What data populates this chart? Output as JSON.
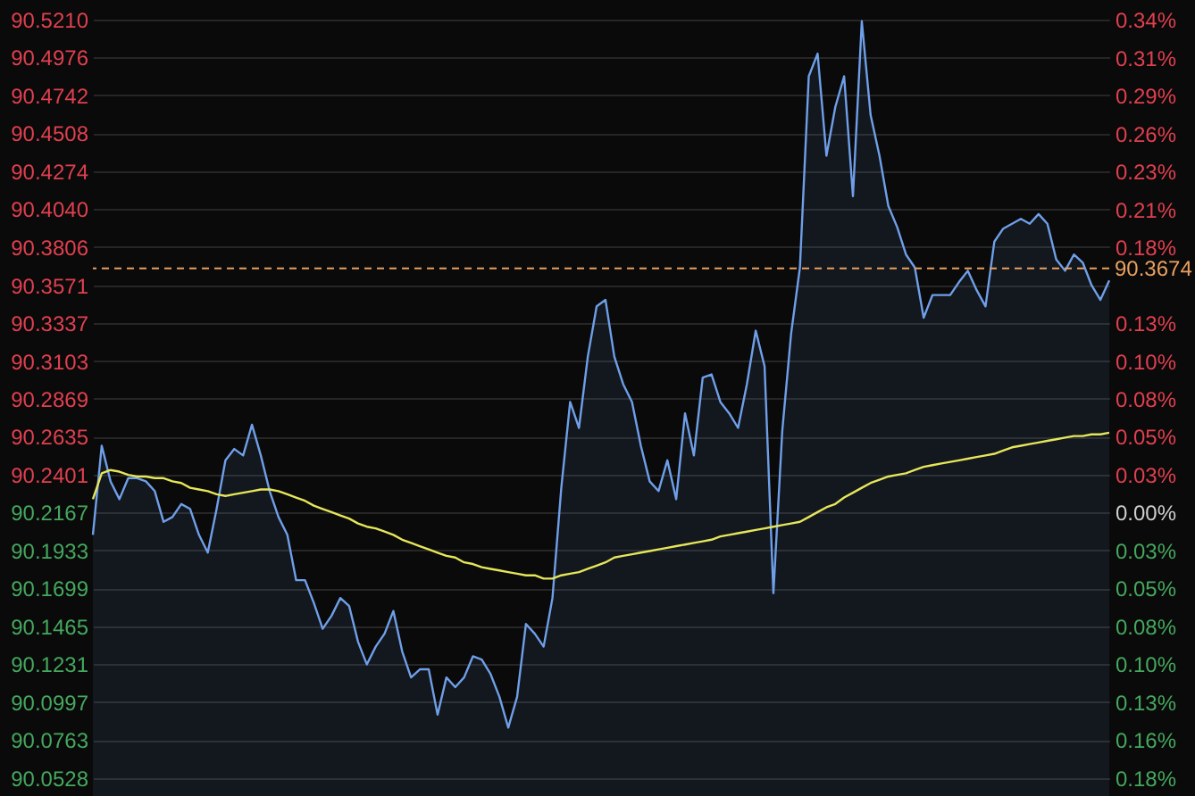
{
  "chart_data": {
    "type": "line",
    "categories": [
      null,
      null,
      null,
      null,
      null,
      null,
      null,
      null,
      null,
      null,
      null,
      null,
      null,
      null,
      null,
      null,
      null,
      null,
      null,
      null,
      null,
      null,
      null,
      null,
      null,
      null,
      null,
      null,
      null,
      null,
      null,
      null,
      null,
      null,
      null,
      null,
      null,
      null,
      null,
      null,
      null,
      null,
      null,
      null,
      null,
      null,
      null,
      null,
      null,
      null,
      null,
      null,
      null,
      null,
      null,
      null,
      null,
      null,
      null,
      null,
      null,
      null,
      null,
      null,
      null,
      null,
      null,
      null,
      null,
      null,
      null,
      null,
      null,
      null,
      null,
      null,
      null,
      null,
      null,
      null,
      null,
      null,
      null,
      null,
      null,
      null,
      null,
      null,
      null,
      null,
      null,
      null,
      null,
      null,
      null,
      null,
      null,
      null,
      null,
      null,
      null,
      null,
      null,
      null,
      null,
      null,
      null,
      null,
      null,
      null,
      null,
      null,
      null,
      null,
      null,
      null
    ],
    "series": [
      {
        "type": "area",
        "color": "#6f9fe8",
        "values": [
          90.203,
          90.258,
          90.236,
          90.225,
          90.238,
          90.238,
          90.236,
          90.23,
          90.211,
          90.214,
          90.222,
          90.219,
          90.203,
          90.192,
          90.219,
          90.249,
          90.256,
          90.252,
          90.271,
          90.252,
          90.23,
          90.214,
          90.203,
          90.175,
          90.175,
          90.161,
          90.145,
          90.153,
          90.164,
          90.159,
          90.137,
          90.123,
          90.134,
          90.142,
          90.156,
          90.131,
          90.115,
          90.12,
          90.12,
          90.092,
          90.115,
          90.109,
          90.115,
          90.128,
          90.126,
          90.117,
          90.103,
          90.084,
          90.103,
          90.148,
          90.142,
          90.134,
          90.164,
          90.232,
          90.285,
          90.269,
          90.313,
          90.344,
          90.348,
          90.313,
          90.296,
          90.285,
          90.258,
          90.236,
          90.23,
          90.249,
          90.225,
          90.278,
          90.252,
          90.3,
          90.302,
          90.285,
          90.278,
          90.269,
          90.296,
          90.329,
          90.307,
          90.167,
          90.267,
          90.327,
          90.368,
          90.486,
          90.5,
          90.437,
          90.467,
          90.486,
          90.412,
          90.52,
          90.462,
          90.437,
          90.406,
          90.393,
          90.376,
          90.368,
          90.337,
          90.351,
          90.351,
          90.351,
          90.359,
          90.366,
          90.354,
          90.344,
          90.384,
          90.392,
          90.395,
          90.398,
          90.395,
          90.401,
          90.395,
          90.373,
          90.366,
          90.376,
          90.371,
          90.357,
          90.348,
          90.36
        ]
      },
      {
        "type": "line",
        "color": "#e6e65a",
        "values": [
          90.225,
          90.241,
          90.243,
          90.242,
          90.24,
          90.239,
          90.239,
          90.238,
          90.238,
          90.236,
          90.235,
          90.232,
          90.231,
          90.23,
          90.228,
          90.227,
          90.228,
          90.229,
          90.23,
          90.231,
          90.231,
          90.23,
          90.228,
          90.226,
          90.224,
          90.221,
          90.219,
          90.217,
          90.215,
          90.213,
          90.21,
          90.208,
          90.207,
          90.205,
          90.203,
          90.2,
          90.198,
          90.196,
          90.194,
          90.192,
          90.19,
          90.189,
          90.186,
          90.185,
          90.183,
          90.182,
          90.181,
          90.18,
          90.179,
          90.178,
          90.178,
          90.176,
          90.176,
          90.178,
          90.179,
          90.18,
          90.182,
          90.184,
          90.186,
          90.189,
          90.19,
          90.191,
          90.192,
          90.193,
          90.194,
          90.195,
          90.196,
          90.197,
          90.198,
          90.199,
          90.2,
          90.202,
          90.203,
          90.204,
          90.205,
          90.206,
          90.207,
          90.208,
          90.209,
          90.21,
          90.211,
          90.214,
          90.217,
          90.22,
          90.222,
          90.226,
          90.229,
          90.232,
          90.235,
          90.237,
          90.239,
          90.24,
          90.241,
          90.243,
          90.245,
          90.246,
          90.247,
          90.248,
          90.249,
          90.25,
          90.251,
          90.252,
          90.253,
          90.255,
          90.257,
          90.258,
          90.259,
          90.26,
          90.261,
          90.262,
          90.263,
          90.264,
          90.264,
          90.265,
          90.265,
          90.266
        ]
      }
    ],
    "ylim": [
      90.0418,
      90.5331
    ],
    "yticks": [
      {
        "value": 90.521,
        "label": "90.5210"
      },
      90.4976,
      90.4742,
      90.4508,
      90.4274,
      {
        "value": 90.404,
        "label": "90.4040"
      },
      90.3806,
      90.3571,
      90.3337,
      90.3103,
      90.2869,
      90.2635,
      90.2401,
      90.2167,
      90.1933,
      90.1699,
      90.1465,
      90.1231,
      90.0997,
      90.0763,
      90.0528
    ],
    "y2lim": [
      -0.1939,
      0.3507
    ],
    "y2ticks": [
      {
        "value": 0.3372,
        "label": "0.34%"
      },
      {
        "value": 0.3112,
        "label": "0.31%"
      },
      {
        "value": 0.2853,
        "label": "0.29%"
      },
      {
        "value": 0.2594,
        "label": "0.26%"
      },
      {
        "value": 0.2334,
        "label": "0.23%"
      },
      {
        "value": 0.2074,
        "label": "0.21%"
      },
      {
        "value": 0.1816,
        "label": "0.18%"
      },
      {
        "value": 0.1297,
        "label": "0.13%"
      },
      {
        "value": 0.1037,
        "label": "0.10%"
      },
      {
        "value": 0.0778,
        "label": "0.08%"
      },
      {
        "value": 0.0519,
        "label": "0.05%"
      },
      {
        "value": 0.0259,
        "label": "0.03%"
      },
      {
        "value": 0,
        "label": "0.00%"
      },
      {
        "value": -0.0259,
        "label": "0.03%"
      },
      {
        "value": -0.0519,
        "label": "0.05%"
      },
      {
        "value": -0.0778,
        "label": "0.08%"
      },
      {
        "value": -0.1037,
        "label": "0.10%"
      },
      {
        "value": -0.1297,
        "label": "0.13%"
      },
      {
        "value": -0.1556,
        "label": "0.16%"
      },
      {
        "value": -0.1816,
        "label": "0.18%"
      }
    ],
    "ref_lines": [
      {
        "axis": "y",
        "value": 90.3674,
        "label": "90.3674",
        "color": "#e8a060",
        "line_style": "dashed"
      }
    ],
    "grid": "y",
    "tick_labels": "y"
  }
}
